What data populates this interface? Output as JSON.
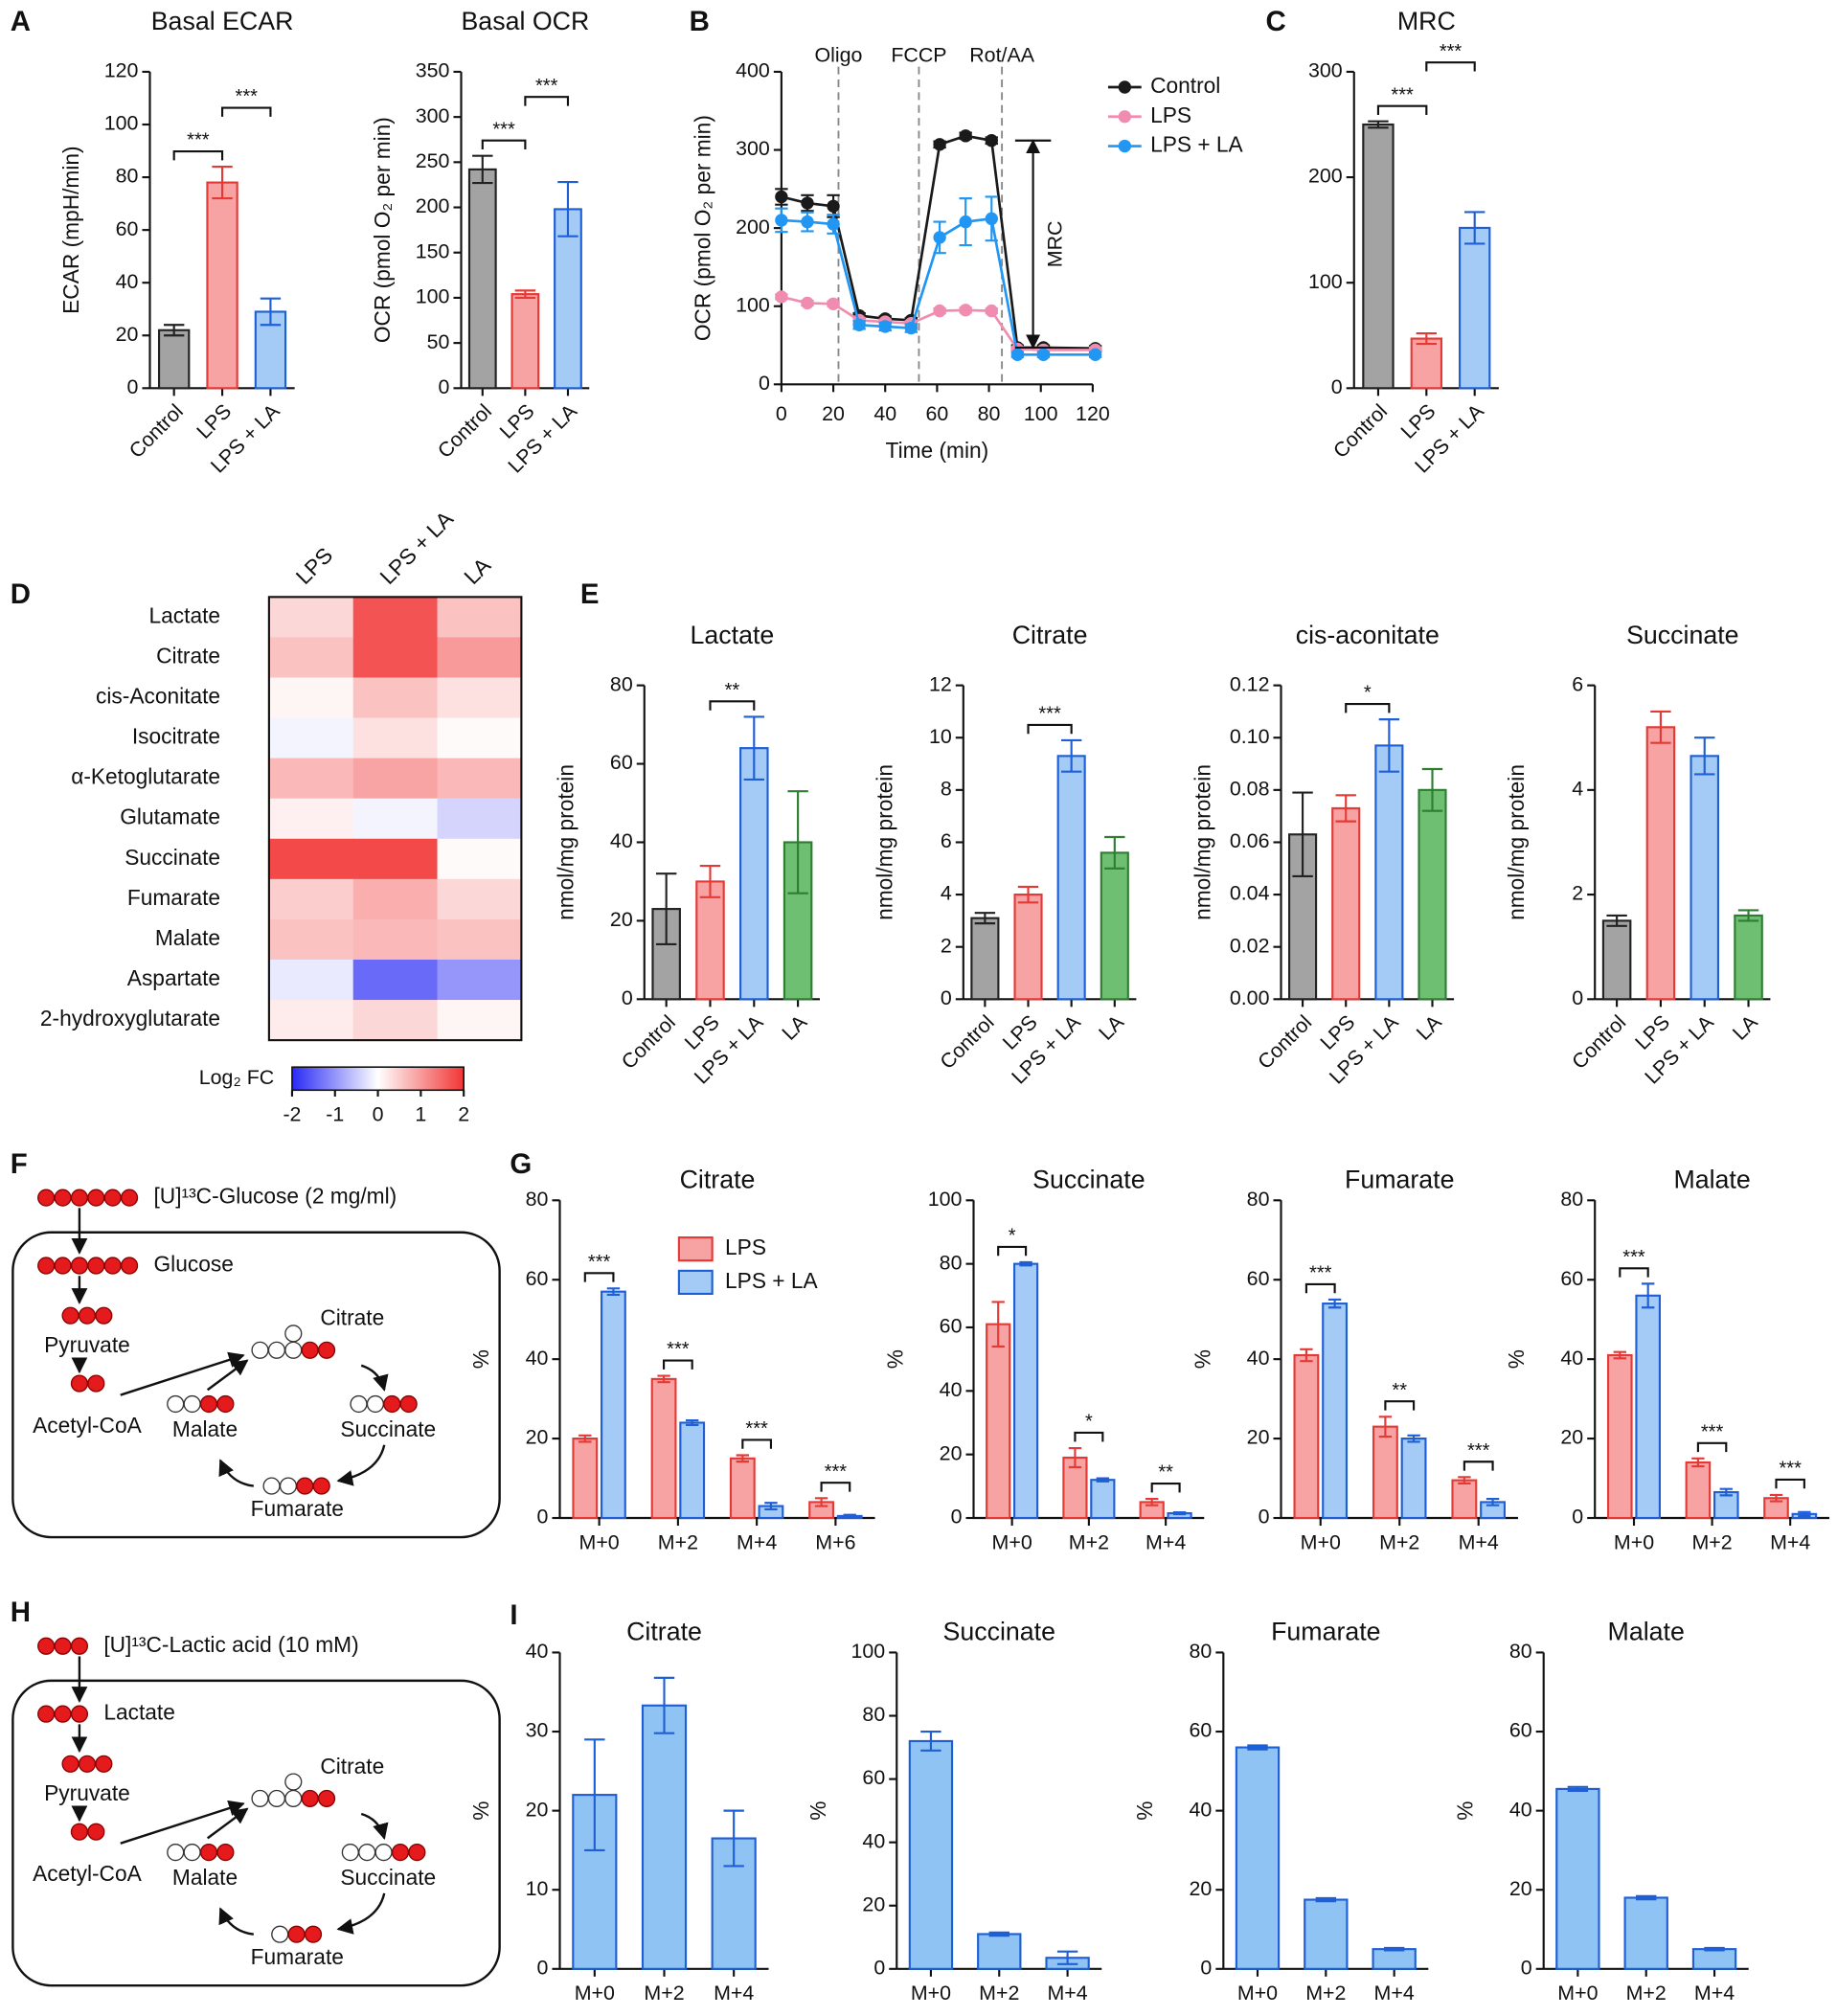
{
  "chart_data": [
    {
      "type": "bar",
      "panel": "A",
      "title": "Basal ECAR",
      "ylabel": "ECAR (mpH/min)",
      "categories": [
        "Control",
        "LPS",
        "LPS + LA"
      ],
      "values": [
        22,
        78,
        29
      ],
      "errors": [
        2,
        6,
        5
      ],
      "colors": [
        "#a3a3a3",
        "#f7a3a3",
        "#a3cbf5"
      ],
      "edge_colors": [
        "#222222",
        "#e53935",
        "#1f5fd6"
      ],
      "ylim": [
        0,
        120
      ],
      "yticks": [
        0,
        20,
        40,
        60,
        80,
        100,
        120
      ],
      "annotations": [
        {
          "text": "***",
          "between": [
            "Control",
            "LPS"
          ]
        },
        {
          "text": "***",
          "between": [
            "LPS",
            "LPS + LA"
          ]
        }
      ]
    },
    {
      "type": "bar",
      "title": "Basal OCR",
      "ylabel": "OCR (pmol O₂ per min)",
      "categories": [
        "Control",
        "LPS",
        "LPS + LA"
      ],
      "values": [
        242,
        104,
        198
      ],
      "errors": [
        15,
        4,
        30
      ],
      "colors": [
        "#a3a3a3",
        "#f7a3a3",
        "#a3cbf5"
      ],
      "edge_colors": [
        "#222222",
        "#e53935",
        "#1f5fd6"
      ],
      "ylim": [
        0,
        350
      ],
      "yticks": [
        0,
        50,
        100,
        150,
        200,
        250,
        300,
        350
      ],
      "annotations": [
        {
          "text": "***",
          "between": [
            "Control",
            "LPS"
          ]
        },
        {
          "text": "***",
          "between": [
            "LPS",
            "LPS + LA"
          ]
        }
      ]
    },
    {
      "type": "line",
      "panel": "B",
      "xlabel": "Time (min)",
      "ylabel": "OCR (pmol O₂ per min)",
      "x": [
        0,
        10,
        20,
        30,
        40,
        50,
        61,
        71,
        81,
        91,
        101,
        121
      ],
      "series": [
        {
          "name": "Control",
          "color": "#1a1a1a",
          "values": [
            240,
            232,
            228,
            88,
            84,
            82,
            307,
            318,
            312,
            47,
            47,
            46
          ],
          "errors": [
            10,
            10,
            14,
            3,
            3,
            3,
            4,
            4,
            4,
            3,
            3,
            3
          ]
        },
        {
          "name": "LPS",
          "color": "#f08cb0",
          "values": [
            112,
            104,
            103,
            82,
            80,
            78,
            94,
            95,
            94,
            45,
            44,
            44
          ],
          "errors": [
            3,
            3,
            3,
            3,
            3,
            3,
            3,
            3,
            3,
            3,
            3,
            3
          ]
        },
        {
          "name": "LPS + LA",
          "color": "#2196f3",
          "values": [
            210,
            208,
            205,
            76,
            74,
            72,
            188,
            208,
            212,
            38,
            38,
            38
          ],
          "errors": [
            15,
            12,
            12,
            5,
            5,
            5,
            20,
            30,
            28,
            3,
            3,
            3
          ]
        }
      ],
      "xlim": [
        0,
        120
      ],
      "xticks": [
        0,
        20,
        40,
        60,
        80,
        100,
        120
      ],
      "ylim": [
        0,
        400
      ],
      "yticks": [
        0,
        100,
        200,
        300,
        400
      ],
      "vlines": [
        {
          "x": 22,
          "label": "Oligo"
        },
        {
          "x": 53,
          "label": "FCCP"
        },
        {
          "x": 85,
          "label": "Rot/AA"
        }
      ],
      "bracket": {
        "text": "MRC",
        "x": 97,
        "from": 312,
        "to": 47
      },
      "legend": "upper right"
    },
    {
      "type": "bar",
      "panel": "C",
      "title": "MRC",
      "categories": [
        "Control",
        "LPS",
        "LPS + LA"
      ],
      "values": [
        250,
        47,
        152
      ],
      "errors": [
        3,
        5,
        15
      ],
      "colors": [
        "#a3a3a3",
        "#f7a3a3",
        "#a3cbf5"
      ],
      "edge_colors": [
        "#222222",
        "#e53935",
        "#1f5fd6"
      ],
      "ylim": [
        0,
        300
      ],
      "yticks": [
        0,
        100,
        200,
        300
      ],
      "annotations": [
        {
          "text": "***",
          "between": [
            "Control",
            "LPS"
          ]
        },
        {
          "text": "***",
          "between": [
            "LPS",
            "LPS + LA"
          ]
        }
      ]
    },
    {
      "type": "heatmap",
      "panel": "D",
      "columns": [
        "LPS",
        "LPS + LA",
        "LA"
      ],
      "rows": [
        "Lactate",
        "Citrate",
        "cis-Aconitate",
        "Isocitrate",
        "α-Ketoglutarate",
        "Glutamate",
        "Succinate",
        "Fumarate",
        "Malate",
        "Aspartate",
        "2-hydroxyglutarate"
      ],
      "values": [
        [
          0.4,
          1.7,
          0.6
        ],
        [
          0.6,
          1.7,
          1.0
        ],
        [
          0.1,
          0.6,
          0.3
        ],
        [
          -0.1,
          0.3,
          0.05
        ],
        [
          0.7,
          0.9,
          0.7
        ],
        [
          0.15,
          -0.1,
          -0.4
        ],
        [
          1.8,
          1.8,
          0.05
        ],
        [
          0.5,
          0.8,
          0.4
        ],
        [
          0.6,
          0.7,
          0.6
        ],
        [
          -0.2,
          -1.4,
          -1.0
        ],
        [
          0.2,
          0.4,
          0.1
        ]
      ],
      "colormap": [
        "#2a2af5",
        "#ffffff",
        "#f23535"
      ],
      "clim": [
        -2,
        2
      ],
      "colorbar_label": "Log₂ FC",
      "colorbar_ticks": [
        -2,
        -1,
        0,
        1,
        2
      ]
    },
    {
      "type": "bar",
      "panel": "E",
      "title": "Lactate",
      "ylabel": "nmol/mg protein",
      "categories": [
        "Control",
        "LPS",
        "LPS + LA",
        "LA"
      ],
      "values": [
        23,
        30,
        64,
        40
      ],
      "errors": [
        9,
        4,
        8,
        13
      ],
      "colors": [
        "#a3a3a3",
        "#f7a3a3",
        "#a3cbf5",
        "#6fbf73"
      ],
      "edge_colors": [
        "#222222",
        "#e53935",
        "#1f5fd6",
        "#2e7d32"
      ],
      "ylim": [
        0,
        80
      ],
      "yticks": [
        0,
        20,
        40,
        60,
        80
      ],
      "annotations": [
        {
          "text": "**",
          "between": [
            "LPS",
            "LPS + LA"
          ]
        }
      ]
    },
    {
      "type": "bar",
      "title": "Citrate",
      "ylabel": "nmol/mg protein",
      "categories": [
        "Control",
        "LPS",
        "LPS + LA",
        "LA"
      ],
      "values": [
        3.1,
        4.0,
        9.3,
        5.6
      ],
      "errors": [
        0.2,
        0.3,
        0.6,
        0.6
      ],
      "colors": [
        "#a3a3a3",
        "#f7a3a3",
        "#a3cbf5",
        "#6fbf73"
      ],
      "edge_colors": [
        "#222222",
        "#e53935",
        "#1f5fd6",
        "#2e7d32"
      ],
      "ylim": [
        0,
        12
      ],
      "yticks": [
        0,
        2,
        4,
        6,
        8,
        10,
        12
      ],
      "annotations": [
        {
          "text": "***",
          "between": [
            "LPS",
            "LPS + LA"
          ]
        }
      ]
    },
    {
      "type": "bar",
      "title": "cis-aconitate",
      "ylabel": "nmol/mg protein",
      "categories": [
        "Control",
        "LPS",
        "LPS + LA",
        "LA"
      ],
      "values": [
        0.063,
        0.073,
        0.097,
        0.08
      ],
      "errors": [
        0.016,
        0.005,
        0.01,
        0.008
      ],
      "colors": [
        "#a3a3a3",
        "#f7a3a3",
        "#a3cbf5",
        "#6fbf73"
      ],
      "edge_colors": [
        "#222222",
        "#e53935",
        "#1f5fd6",
        "#2e7d32"
      ],
      "ylim": [
        0,
        0.12
      ],
      "yticks": [
        {
          "value": 0,
          "label": "0.00"
        },
        {
          "value": 0.02,
          "label": "0.02"
        },
        {
          "value": 0.04,
          "label": "0.04"
        },
        {
          "value": 0.06,
          "label": "0.06"
        },
        {
          "value": 0.08,
          "label": "0.08"
        },
        {
          "value": 0.1,
          "label": "0.10"
        },
        {
          "value": 0.12,
          "label": "0.12"
        }
      ],
      "annotations": [
        {
          "text": "*",
          "between": [
            "LPS",
            "LPS + LA"
          ]
        }
      ]
    },
    {
      "type": "bar",
      "title": "Succinate",
      "ylabel": "nmol/mg protein",
      "categories": [
        "Control",
        "LPS",
        "LPS + LA",
        "LA"
      ],
      "values": [
        1.5,
        5.2,
        4.65,
        1.6
      ],
      "errors": [
        0.1,
        0.3,
        0.35,
        0.1
      ],
      "colors": [
        "#a3a3a3",
        "#f7a3a3",
        "#a3cbf5",
        "#6fbf73"
      ],
      "edge_colors": [
        "#222222",
        "#e53935",
        "#1f5fd6",
        "#2e7d32"
      ],
      "ylim": [
        0,
        6
      ],
      "yticks": [
        0,
        2,
        4,
        6
      ],
      "annotations": []
    },
    {
      "type": "bar",
      "panel": "G",
      "title": "Citrate",
      "ylabel": "%",
      "legend": "upper center",
      "categories": [
        "M+0",
        "M+2",
        "M+4",
        "M+6"
      ],
      "series": [
        {
          "name": "LPS",
          "color": "#f7a3a3",
          "edge_color": "#e53935",
          "values": [
            20,
            35,
            15,
            4
          ],
          "errors": [
            0.8,
            0.8,
            0.8,
            1
          ]
        },
        {
          "name": "LPS + LA",
          "color": "#a3cbf5",
          "edge_color": "#1f5fd6",
          "values": [
            57,
            24,
            3,
            0.5
          ],
          "errors": [
            0.8,
            0.6,
            0.8,
            0.3
          ]
        }
      ],
      "ylim": [
        0,
        80
      ],
      "yticks": [
        0,
        20,
        40,
        60,
        80
      ],
      "annotations": [
        {
          "text": "***",
          "category": "M+0"
        },
        {
          "text": "***",
          "category": "M+2"
        },
        {
          "text": "***",
          "category": "M+4"
        },
        {
          "text": "***",
          "category": "M+6"
        }
      ]
    },
    {
      "type": "bar",
      "title": "Succinate",
      "ylabel": "%",
      "categories": [
        "M+0",
        "M+2",
        "M+4"
      ],
      "series": [
        {
          "name": "LPS",
          "color": "#f7a3a3",
          "edge_color": "#e53935",
          "values": [
            61,
            19,
            5
          ],
          "errors": [
            7,
            3,
            1
          ]
        },
        {
          "name": "LPS + LA",
          "color": "#a3cbf5",
          "edge_color": "#1f5fd6",
          "values": [
            80,
            12,
            1.5
          ],
          "errors": [
            0.5,
            0.5,
            0.3
          ]
        }
      ],
      "ylim": [
        0,
        100
      ],
      "yticks": [
        0,
        20,
        40,
        60,
        80,
        100
      ],
      "annotations": [
        {
          "text": "*",
          "category": "M+0"
        },
        {
          "text": "*",
          "category": "M+2"
        },
        {
          "text": "**",
          "category": "M+4"
        }
      ]
    },
    {
      "type": "bar",
      "title": "Fumarate",
      "ylabel": "%",
      "categories": [
        "M+0",
        "M+2",
        "M+4"
      ],
      "series": [
        {
          "name": "LPS",
          "color": "#f7a3a3",
          "edge_color": "#e53935",
          "values": [
            41,
            23,
            9.5
          ],
          "errors": [
            1.5,
            2.5,
            0.8
          ]
        },
        {
          "name": "LPS + LA",
          "color": "#a3cbf5",
          "edge_color": "#1f5fd6",
          "values": [
            54,
            20,
            4
          ],
          "errors": [
            1,
            0.8,
            0.8
          ]
        }
      ],
      "ylim": [
        0,
        80
      ],
      "yticks": [
        0,
        20,
        40,
        60,
        80
      ],
      "annotations": [
        {
          "text": "***",
          "category": "M+0"
        },
        {
          "text": "**",
          "category": "M+2"
        },
        {
          "text": "***",
          "category": "M+4"
        }
      ]
    },
    {
      "type": "bar",
      "title": "Malate",
      "ylabel": "%",
      "categories": [
        "M+0",
        "M+2",
        "M+4"
      ],
      "series": [
        {
          "name": "LPS",
          "color": "#f7a3a3",
          "edge_color": "#e53935",
          "values": [
            41,
            14,
            5
          ],
          "errors": [
            0.8,
            1,
            0.8
          ]
        },
        {
          "name": "LPS + LA",
          "color": "#a3cbf5",
          "edge_color": "#1f5fd6",
          "values": [
            56,
            6.5,
            1
          ],
          "errors": [
            3,
            0.8,
            0.5
          ]
        }
      ],
      "ylim": [
        0,
        80
      ],
      "yticks": [
        0,
        20,
        40,
        60,
        80
      ],
      "annotations": [
        {
          "text": "***",
          "category": "M+0"
        },
        {
          "text": "***",
          "category": "M+2"
        },
        {
          "text": "***",
          "category": "M+4"
        }
      ]
    },
    {
      "type": "bar",
      "panel": "I",
      "title": "Citrate",
      "ylabel": "%",
      "categories": [
        "M+0",
        "M+2",
        "M+4"
      ],
      "values": [
        22,
        33.3,
        16.5
      ],
      "errors": [
        7,
        3.5,
        3.5
      ],
      "colors": [
        "#8ec3f3",
        "#8ec3f3",
        "#8ec3f3"
      ],
      "edge_colors": [
        "#1f5fd6",
        "#1f5fd6",
        "#1f5fd6"
      ],
      "ylim": [
        0,
        40
      ],
      "yticks": [
        0,
        10,
        20,
        30,
        40
      ],
      "annotations": []
    },
    {
      "type": "bar",
      "title": "Succinate",
      "ylabel": "%",
      "categories": [
        "M+0",
        "M+2",
        "M+4"
      ],
      "values": [
        72,
        11,
        3.5
      ],
      "errors": [
        3,
        0.5,
        2
      ],
      "colors": [
        "#8ec3f3",
        "#8ec3f3",
        "#8ec3f3"
      ],
      "edge_colors": [
        "#1f5fd6",
        "#1f5fd6",
        "#1f5fd6"
      ],
      "ylim": [
        0,
        100
      ],
      "yticks": [
        0,
        20,
        40,
        60,
        80,
        100
      ],
      "annotations": []
    },
    {
      "type": "bar",
      "title": "Fumarate",
      "ylabel": "%",
      "categories": [
        "M+0",
        "M+2",
        "M+4"
      ],
      "values": [
        56,
        17.5,
        5
      ],
      "errors": [
        0.5,
        0.4,
        0.3
      ],
      "colors": [
        "#8ec3f3",
        "#8ec3f3",
        "#8ec3f3"
      ],
      "edge_colors": [
        "#1f5fd6",
        "#1f5fd6",
        "#1f5fd6"
      ],
      "ylim": [
        0,
        80
      ],
      "yticks": [
        0,
        20,
        40,
        60,
        80
      ],
      "annotations": []
    },
    {
      "type": "bar",
      "title": "Malate",
      "ylabel": "%",
      "categories": [
        "M+0",
        "M+2",
        "M+4"
      ],
      "values": [
        45.5,
        18,
        5
      ],
      "errors": [
        0.5,
        0.4,
        0.3
      ],
      "colors": [
        "#8ec3f3",
        "#8ec3f3",
        "#8ec3f3"
      ],
      "edge_colors": [
        "#1f5fd6",
        "#1f5fd6",
        "#1f5fd6"
      ],
      "ylim": [
        0,
        80
      ],
      "yticks": [
        0,
        20,
        40,
        60,
        80
      ],
      "annotations": []
    }
  ],
  "diagrams": [
    {
      "panel": "F",
      "tracer": "[U]¹³C-Glucose (2 mg/ml)",
      "nodes": [
        "Glucose",
        "Pyruvate",
        "Acetyl-CoA",
        "Citrate",
        "Succinate",
        "Fumarate",
        "Malate"
      ]
    },
    {
      "panel": "H",
      "tracer": "[U]¹³C-Lactic acid (10 mM)",
      "nodes": [
        "Lactate",
        "Pyruvate",
        "Acetyl-CoA",
        "Citrate",
        "Succinate",
        "Fumarate",
        "Malate"
      ]
    }
  ]
}
